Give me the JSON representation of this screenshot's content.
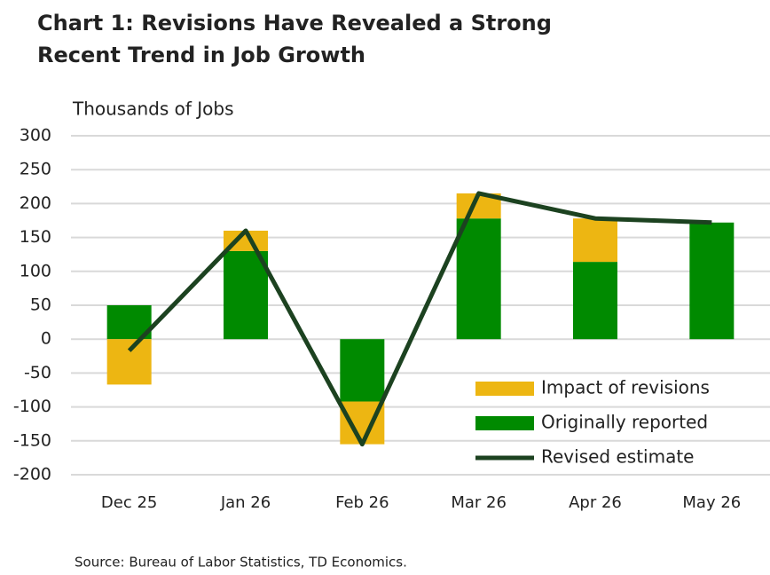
{
  "chart_data": {
    "type": "bar-line",
    "title": [
      "Chart 1: Revisions Have Revealed a Strong",
      "Recent Trend in Job Growth"
    ],
    "y_axis_label": "Thousands of Jobs",
    "source": "Source: Bureau of Labor Statistics, TD Economics.",
    "categories": [
      "Dec 25",
      "Jan 26",
      "Feb 26",
      "Mar 26",
      "Apr 26",
      "May 26"
    ],
    "series": [
      {
        "name": "Originally reported",
        "type": "bar",
        "color": "#008a00",
        "values": [
          50,
          130,
          -92,
          178,
          114,
          172
        ]
      },
      {
        "name": "Impact of revisions",
        "type": "bar",
        "color": "#edb612",
        "values": [
          -67,
          30,
          -63,
          37,
          64,
          0
        ]
      },
      {
        "name": "Revised estimate",
        "type": "line",
        "color": "#1c4220",
        "values": [
          -17,
          160,
          -155,
          215,
          178,
          172
        ]
      }
    ],
    "stacked": true,
    "ylim": [
      -200,
      300
    ],
    "yticks": [
      -200,
      -150,
      -100,
      -50,
      0,
      50,
      100,
      150,
      200,
      250,
      300
    ],
    "grid": true,
    "legend": "lower right"
  }
}
